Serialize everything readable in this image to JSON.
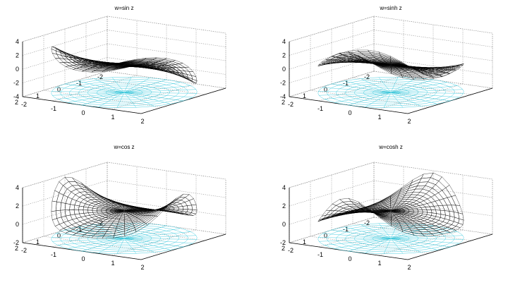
{
  "chart_data": [
    {
      "type": "surface3d",
      "function": "sin",
      "title": "w=sin z",
      "x_ticks": [
        "2",
        "1",
        "0",
        "-1",
        "-2"
      ],
      "y_ticks": [
        "-2",
        "-1",
        "0",
        "1",
        "2"
      ],
      "z_ticks": [
        "4",
        "2",
        "0",
        "-2",
        "-4"
      ],
      "z_range": [
        -4,
        4
      ],
      "domain": "disc |z| <= 2",
      "z_value": "Re(w)",
      "color_by": "arg(w)"
    },
    {
      "type": "surface3d",
      "function": "sinh",
      "title": "w=sinh z",
      "x_ticks": [
        "2",
        "1",
        "0",
        "-1",
        "-2"
      ],
      "y_ticks": [
        "-2",
        "-1",
        "0",
        "1",
        "2"
      ],
      "z_ticks": [
        "4",
        "2",
        "0",
        "-2",
        "-4"
      ],
      "z_range": [
        -4,
        4
      ],
      "domain": "disc |z| <= 2",
      "z_value": "Re(w)",
      "color_by": "arg(w)"
    },
    {
      "type": "surface3d",
      "function": "cos",
      "title": "w=cos z",
      "x_ticks": [
        "2",
        "1",
        "0",
        "-1",
        "-2"
      ],
      "y_ticks": [
        "-2",
        "-1",
        "0",
        "1",
        "2"
      ],
      "z_ticks": [
        "4",
        "2",
        "0",
        "-2"
      ],
      "z_range": [
        -2,
        4
      ],
      "domain": "disc |z| <= 2",
      "z_value": "Re(w)",
      "color_by": "arg(w)"
    },
    {
      "type": "surface3d",
      "function": "cosh",
      "title": "w=cosh z",
      "x_ticks": [
        "2",
        "1",
        "0",
        "-1",
        "-2"
      ],
      "y_ticks": [
        "-2",
        "-1",
        "0",
        "1",
        "2"
      ],
      "z_ticks": [
        "4",
        "2",
        "0",
        "-2"
      ],
      "z_range": [
        -2,
        4
      ],
      "domain": "disc |z| <= 2",
      "z_value": "Re(w)",
      "color_by": "arg(w)"
    }
  ]
}
